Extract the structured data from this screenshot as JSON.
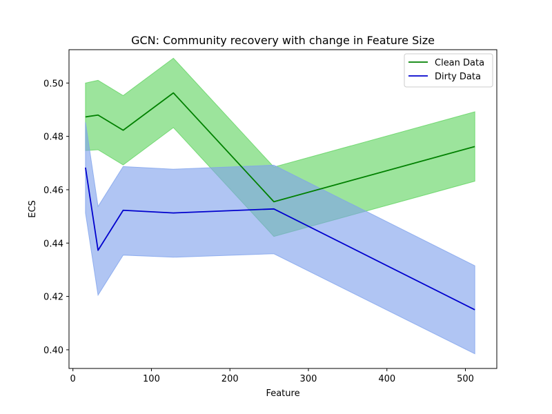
{
  "chart_data": {
    "type": "line",
    "title": "GCN: Community recovery with change in Feature Size",
    "xlabel": "Feature",
    "ylabel": "ECS",
    "xlim": [
      -5,
      540
    ],
    "ylim": [
      0.393,
      0.5125
    ],
    "xticks": [
      0,
      100,
      200,
      300,
      400,
      500
    ],
    "yticks": [
      0.4,
      0.42,
      0.44,
      0.46,
      0.48,
      0.5
    ],
    "ytick_labels": [
      "0.40",
      "0.42",
      "0.44",
      "0.46",
      "0.48",
      "0.50"
    ],
    "legend_position": "top-right",
    "grid": false,
    "x": [
      16,
      32,
      64,
      128,
      256,
      512
    ],
    "series": [
      {
        "name": "Clean Data",
        "color": "#008000",
        "band_color": "#5fd35f",
        "values": [
          0.4873,
          0.488,
          0.4823,
          0.4963,
          0.4555,
          0.4762
        ],
        "lower": [
          0.4747,
          0.475,
          0.4693,
          0.4833,
          0.4425,
          0.4632
        ],
        "upper": [
          0.5,
          0.501,
          0.4953,
          0.5093,
          0.4685,
          0.4892
        ]
      },
      {
        "name": "Dirty Data",
        "color": "#0000cd",
        "band_color": "#7fa2ec",
        "values": [
          0.4683,
          0.4373,
          0.4523,
          0.4513,
          0.4528,
          0.415
        ],
        "lower": [
          0.4513,
          0.4205,
          0.4355,
          0.4347,
          0.436,
          0.3985
        ],
        "upper": [
          0.4853,
          0.4537,
          0.4687,
          0.4677,
          0.4692,
          0.4315
        ]
      }
    ]
  }
}
